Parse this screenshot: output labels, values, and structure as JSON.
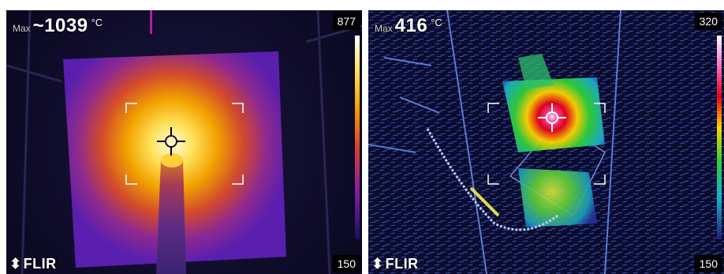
{
  "panels": [
    {
      "max_label": "Max",
      "max_value": "~1039",
      "unit": "°C",
      "scale_max": "877",
      "scale_min": "150",
      "brand": "FLIR",
      "brand_mark": "⬍",
      "palette": "iron"
    },
    {
      "max_label": "Max",
      "max_value": "416",
      "unit": "°C",
      "scale_max": "320",
      "scale_min": "150",
      "brand": "FLIR",
      "brand_mark": "⬍",
      "palette": "rainbow"
    }
  ],
  "colors": {
    "iron_hot": "#fffbe0",
    "iron_mid": "#f2a300",
    "iron_cool": "#5a1fae",
    "rainbow_hot": "#e8001c",
    "rainbow_mid": "#2ecf3a",
    "rainbow_cool": "#1d1f7a"
  }
}
